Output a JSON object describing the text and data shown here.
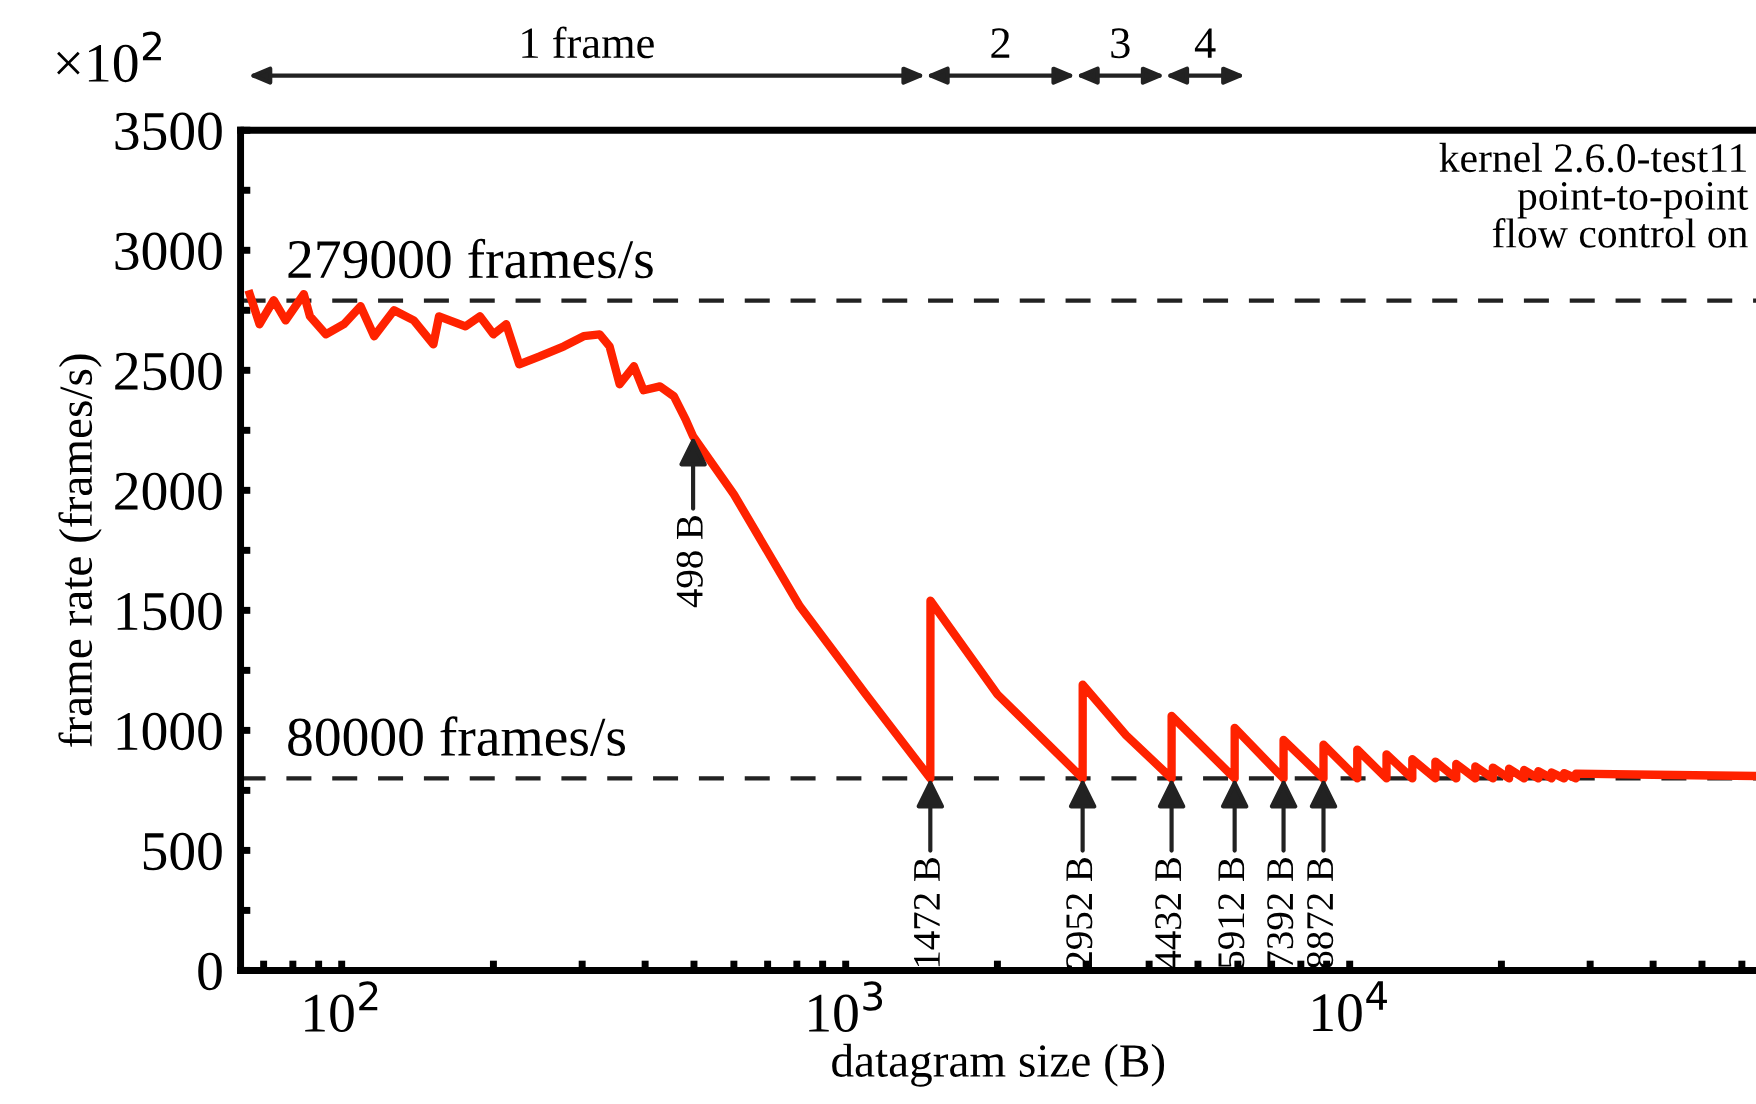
{
  "chart_data": {
    "type": "line",
    "xlabel": "datagram size (B)",
    "ylabel": "frame rate (frames/s)",
    "log": "x",
    "xlim": [
      63,
      64000
    ],
    "ylim": [
      0,
      3500
    ],
    "xticks": [
      {
        "value": 70,
        "label": null
      },
      {
        "value": 80,
        "label": null
      },
      {
        "value": 90,
        "label": null
      },
      {
        "value": 100,
        "label": "10$^{2}$"
      },
      {
        "value": 200,
        "label": null
      },
      {
        "value": 300,
        "label": null
      },
      {
        "value": 400,
        "label": null
      },
      {
        "value": 500,
        "label": null
      },
      {
        "value": 600,
        "label": null
      },
      {
        "value": 700,
        "label": null
      },
      {
        "value": 800,
        "label": null
      },
      {
        "value": 900,
        "label": null
      },
      {
        "value": 1000,
        "label": "10$^{3}$"
      },
      {
        "value": 2000,
        "label": null
      },
      {
        "value": 3000,
        "label": null
      },
      {
        "value": 4000,
        "label": null
      },
      {
        "value": 5000,
        "label": null
      },
      {
        "value": 6000,
        "label": null
      },
      {
        "value": 7000,
        "label": null
      },
      {
        "value": 8000,
        "label": null
      },
      {
        "value": 9000,
        "label": null
      },
      {
        "value": 10000,
        "label": "10$^{4}$"
      },
      {
        "value": 20000,
        "label": null
      },
      {
        "value": 30000,
        "label": null
      },
      {
        "value": 40000,
        "label": null
      },
      {
        "value": 50000,
        "label": null
      },
      {
        "value": 60000,
        "label": null
      }
    ],
    "yticks": [
      0,
      {
        "value": 250,
        "label": null
      },
      500,
      {
        "value": 750,
        "label": null
      },
      1000,
      {
        "value": 1250,
        "label": null
      },
      1500,
      {
        "value": 1750,
        "label": null
      },
      2000,
      {
        "value": 2250,
        "label": null
      },
      2500,
      {
        "value": 2750,
        "label": null
      },
      3000,
      {
        "value": 3250,
        "label": null
      },
      3500
    ],
    "grid": false,
    "legend": false,
    "marker": "none",
    "line_style": "solid",
    "series": [
      {
        "color": "#ff2200",
        "x": [
          65.7,
          68.7,
          73.3,
          77.4,
          84.1,
          86.5,
          93,
          101,
          109,
          116,
          127,
          139,
          152,
          156,
          176,
          188,
          200,
          212,
          225,
          247,
          276,
          302,
          325,
          340,
          356,
          380,
          397,
          428,
          456,
          482,
          498,
          600,
          811,
          1096,
          1472,
          1473,
          2000,
          2952,
          2953,
          3600,
          4432,
          4433,
          5912,
          5913,
          7392,
          7393,
          8872,
          8873,
          10352,
          10353,
          11832,
          11833,
          13312,
          13313,
          14792,
          14793,
          16272,
          16273,
          17752,
          17753,
          19232,
          19233,
          20712,
          20713,
          22192,
          22193,
          23672,
          23673,
          25152,
          25153,
          26632,
          26633,
          28112,
          28113,
          40000,
          64000
        ],
        "values": [
          2817,
          2692,
          2792,
          2708,
          2817,
          2725,
          2650,
          2692,
          2767,
          2642,
          2750,
          2708,
          2608,
          2725,
          2683,
          2725,
          2650,
          2692,
          2525,
          2558,
          2600,
          2642,
          2650,
          2600,
          2442,
          2517,
          2417,
          2433,
          2392,
          2292,
          2225,
          1983,
          1517,
          1150,
          800,
          1540,
          1150,
          800,
          1190,
          980,
          800,
          1060,
          800,
          1010,
          800,
          960,
          800,
          940,
          800,
          920,
          800,
          900,
          800,
          880,
          800,
          870,
          800,
          860,
          800,
          850,
          800,
          845,
          800,
          840,
          800,
          835,
          800,
          830,
          800,
          825,
          800,
          822,
          800,
          820,
          815,
          810
        ]
      }
    ],
    "ref_lines": [
      {
        "axis": "y",
        "value": 2790,
        "label": "279000 frames/s",
        "color": "#222222",
        "line_style": "dashed"
      },
      {
        "axis": "y",
        "value": 800,
        "label": "80000 frames/s",
        "color": "#222222",
        "line_style": "dashed"
      }
    ],
    "annotations": [
      "×10$^{2}$",
      "1 frame",
      "2",
      "3",
      "4",
      "kernel 2.6.0-test11\npoint-to-point\nflow control on",
      {
        "text": "498 B",
        "x": 498,
        "y": 2225
      },
      {
        "text": "1472 B",
        "x": 1472,
        "y": 800
      },
      {
        "text": "2952 B",
        "x": 2952,
        "y": 800
      },
      {
        "text": "4432 B",
        "x": 4432,
        "y": 800
      },
      {
        "text": "5912 B",
        "x": 5912,
        "y": 800
      },
      {
        "text": "7392 B",
        "x": 7392,
        "y": 800
      },
      {
        "text": "8872 B",
        "x": 8872,
        "y": 800
      }
    ]
  }
}
